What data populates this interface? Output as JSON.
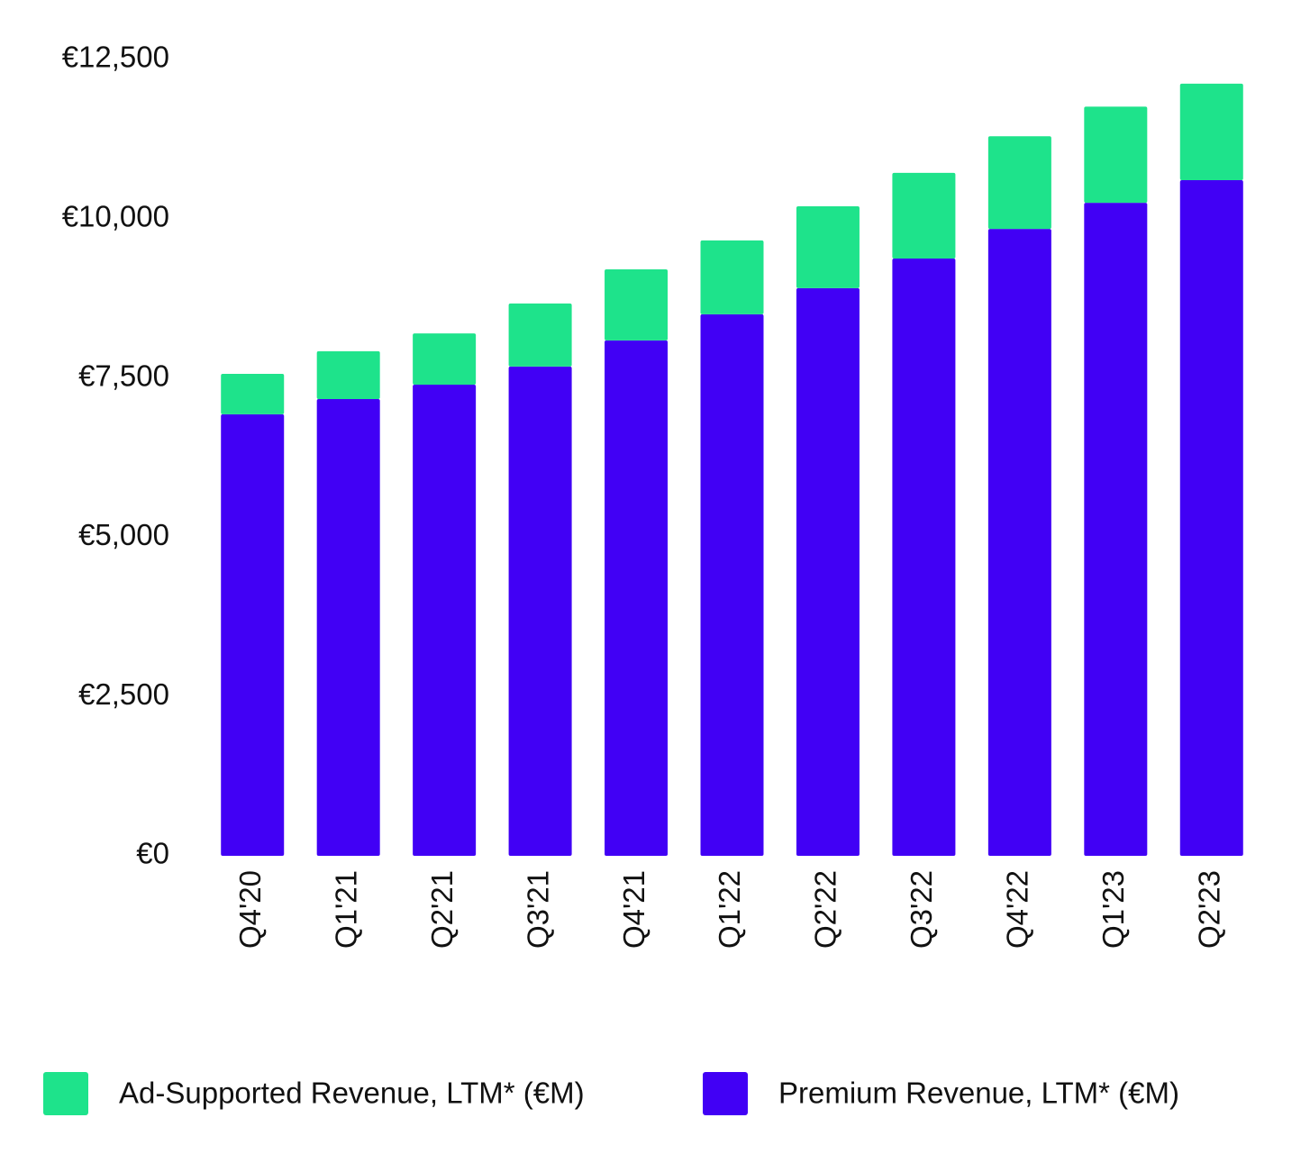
{
  "chart_data": {
    "type": "stacked_bar",
    "categories": [
      "Q4'20",
      "Q1'21",
      "Q2'21",
      "Q3'21",
      "Q4'21",
      "Q1'22",
      "Q2'22",
      "Q3'22",
      "Q4'22",
      "Q1'23",
      "Q2'23"
    ],
    "series": [
      {
        "name": "Ad-Supported Revenue, LTM* (€M)",
        "color": "#1ee38b",
        "values": [
          635,
          750,
          805,
          990,
          1115,
          1160,
          1285,
          1345,
          1455,
          1510,
          1515
        ]
      },
      {
        "name": "Premium Revenue, LTM* (€M)",
        "color": "#4100f5",
        "values": [
          6930,
          7170,
          7395,
          7680,
          8090,
          8500,
          8910,
          9375,
          9840,
          10250,
          10605
        ]
      }
    ],
    "ylim": [
      0,
      12500
    ],
    "yticks": [
      {
        "value": 0,
        "label": "€0"
      },
      {
        "value": 2500,
        "label": "€2,500"
      },
      {
        "value": 5000,
        "label": "€5,000"
      },
      {
        "value": 7500,
        "label": "€7,500"
      },
      {
        "value": 10000,
        "label": "€10,000"
      },
      {
        "value": 12500,
        "label": "€12,500"
      }
    ],
    "grid": false
  }
}
